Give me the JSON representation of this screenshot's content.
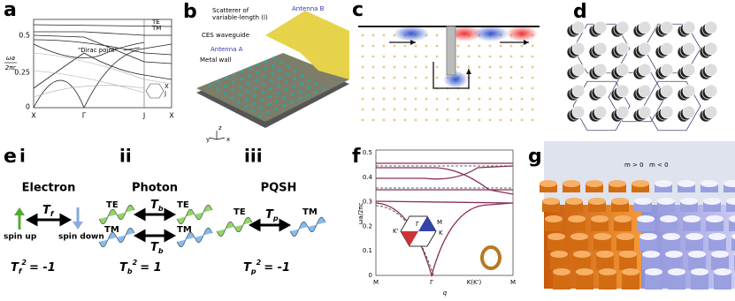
{
  "panels": {
    "a": {
      "label": "a",
      "y_axis": {
        "top": "ωa",
        "bottom": "2πc"
      },
      "yticks": [
        "0.5",
        "0.25",
        "0"
      ],
      "xticks": [
        "X",
        "Γ",
        "J",
        "X"
      ],
      "legend": [
        "TE",
        "TM"
      ],
      "annotation": "\"Dirac point\"",
      "inset": [
        "X",
        "J"
      ]
    },
    "b": {
      "label": "b",
      "callouts": [
        "Scatterer of",
        "variable-length (l)",
        "CES waveguide",
        "Metal wall",
        "Antenna A",
        "Antenna B"
      ],
      "axes": [
        "z",
        "x",
        "y"
      ]
    },
    "c": {
      "label": "c"
    },
    "d": {
      "label": "d"
    },
    "e": {
      "label": "e",
      "columns": [
        {
          "numeral": "i",
          "title": "Electron",
          "labels": [
            "spin up",
            "spin down"
          ],
          "operator": {
            "base": "T",
            "sub": "f"
          },
          "equation": {
            "base": "T",
            "sub": "f",
            "rest": "= -1",
            "sup": "2"
          }
        },
        {
          "numeral": "ii",
          "title": "Photon",
          "labels": [
            "TE",
            "TM",
            "TE",
            "TM"
          ],
          "operator": {
            "base": "T",
            "sub": "b"
          },
          "equation": {
            "base": "T",
            "sub": "b",
            "rest": "= 1",
            "sup": "2"
          }
        },
        {
          "numeral": "iii",
          "title": "PQSH",
          "labels": [
            "TE",
            "TM"
          ],
          "operator": {
            "base": "T",
            "sub": "p"
          },
          "equation": {
            "base": "T",
            "sub": "p",
            "rest": "= -1",
            "sup": "2"
          }
        }
      ]
    },
    "f": {
      "label": "f",
      "y_axis": "ωa/2πc",
      "yticks": [
        "0.5",
        "0.4",
        "0.3",
        "0.2",
        "0.1",
        "0"
      ],
      "xticks": [
        "M",
        "Γ",
        "K(K')",
        "M"
      ],
      "x_axis": "q",
      "inset": [
        "Γ",
        "M",
        "K'",
        "K"
      ]
    },
    "g": {
      "label": "g",
      "regions": [
        "m > 0",
        "m < 0"
      ]
    }
  }
}
